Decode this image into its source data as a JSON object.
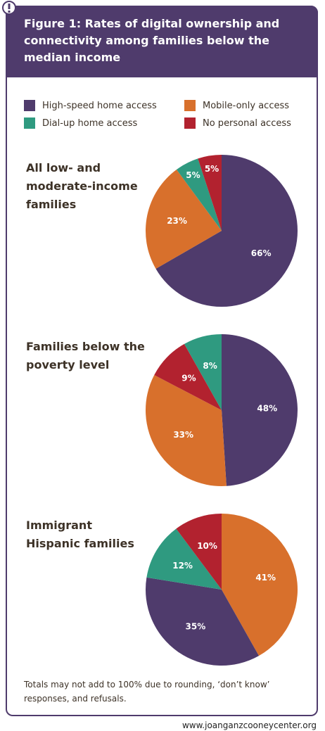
{
  "title": "Figure 1: Rates of digital ownership and connectivity among families below the median income",
  "legend": [
    {
      "name": "High-speed home access",
      "color": "#4f3b6c"
    },
    {
      "name": "Mobile-only access",
      "color": "#d8702c"
    },
    {
      "name": "Dial-up home access",
      "color": "#2f9a80"
    },
    {
      "name": "No personal access",
      "color": "#b2222f"
    }
  ],
  "chart_data": [
    {
      "type": "pie",
      "title": "All low- and moderate-income families",
      "categories": [
        "High-speed home access",
        "Mobile-only access",
        "Dial-up home access",
        "No personal access"
      ],
      "values": [
        66,
        23,
        5,
        5
      ],
      "value_labels": [
        "66%",
        "23%",
        "5%",
        "5%"
      ]
    },
    {
      "type": "pie",
      "title": "Families below the poverty level",
      "categories": [
        "High-speed home access",
        "Mobile-only access",
        "No personal access",
        "Dial-up home access"
      ],
      "values": [
        48,
        33,
        9,
        8
      ],
      "value_labels": [
        "48%",
        "33%",
        "9%",
        "8%"
      ]
    },
    {
      "type": "pie",
      "title": "Immigrant Hispanic families",
      "categories": [
        "Mobile-only access",
        "High-speed home access",
        "Dial-up home access",
        "No personal access"
      ],
      "values": [
        41,
        35,
        12,
        10
      ],
      "value_labels": [
        "41%",
        "35%",
        "12%",
        "10%"
      ]
    }
  ],
  "note": "Totals may not add to 100% due to rounding, ‘don’t know’ responses, and refusals.",
  "source_url": "www.joanganzcooneycenter.org"
}
